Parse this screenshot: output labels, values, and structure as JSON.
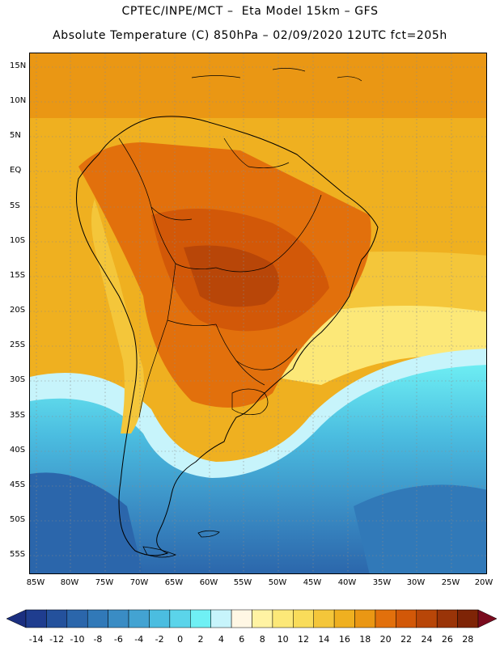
{
  "header": {
    "line1": "CPTEC/INPE/MCT –  Eta Model 15km – GFS",
    "line2": "Absolute Temperature (C) 850hPa – 02/09/2020 12UTC fct=205h"
  },
  "map": {
    "lat_labels": [
      "15N",
      "10N",
      "5N",
      "EQ",
      "5S",
      "10S",
      "15S",
      "20S",
      "25S",
      "30S",
      "35S",
      "40S",
      "45S",
      "50S",
      "55S"
    ],
    "lon_labels": [
      "85W",
      "80W",
      "75W",
      "70W",
      "65W",
      "60W",
      "55W",
      "50W",
      "45W",
      "40W",
      "35W",
      "30W",
      "25W",
      "20W"
    ]
  },
  "legend": {
    "labels": [
      "-14",
      "-12",
      "-10",
      "-8",
      "-6",
      "-4",
      "-2",
      "0",
      "2",
      "4",
      "6",
      "8",
      "10",
      "12",
      "14",
      "16",
      "18",
      "20",
      "22",
      "24",
      "26",
      "28"
    ],
    "colors": [
      "#1f3d8f",
      "#24519c",
      "#2b66ab",
      "#3179b8",
      "#3a8cc4",
      "#43a3d2",
      "#4bbde0",
      "#5bd4ea",
      "#6ff0f4",
      "#c7f4fb",
      "#fff7e4",
      "#fff3a3",
      "#fce878",
      "#f9dc5a",
      "#f4c63a",
      "#efb020",
      "#ea9714",
      "#e2700c",
      "#d25808",
      "#b84608",
      "#9a3408",
      "#7e2406"
    ],
    "low_arrow_color": "#1b2f80",
    "high_arrow_color": "#7a0b1e"
  }
}
